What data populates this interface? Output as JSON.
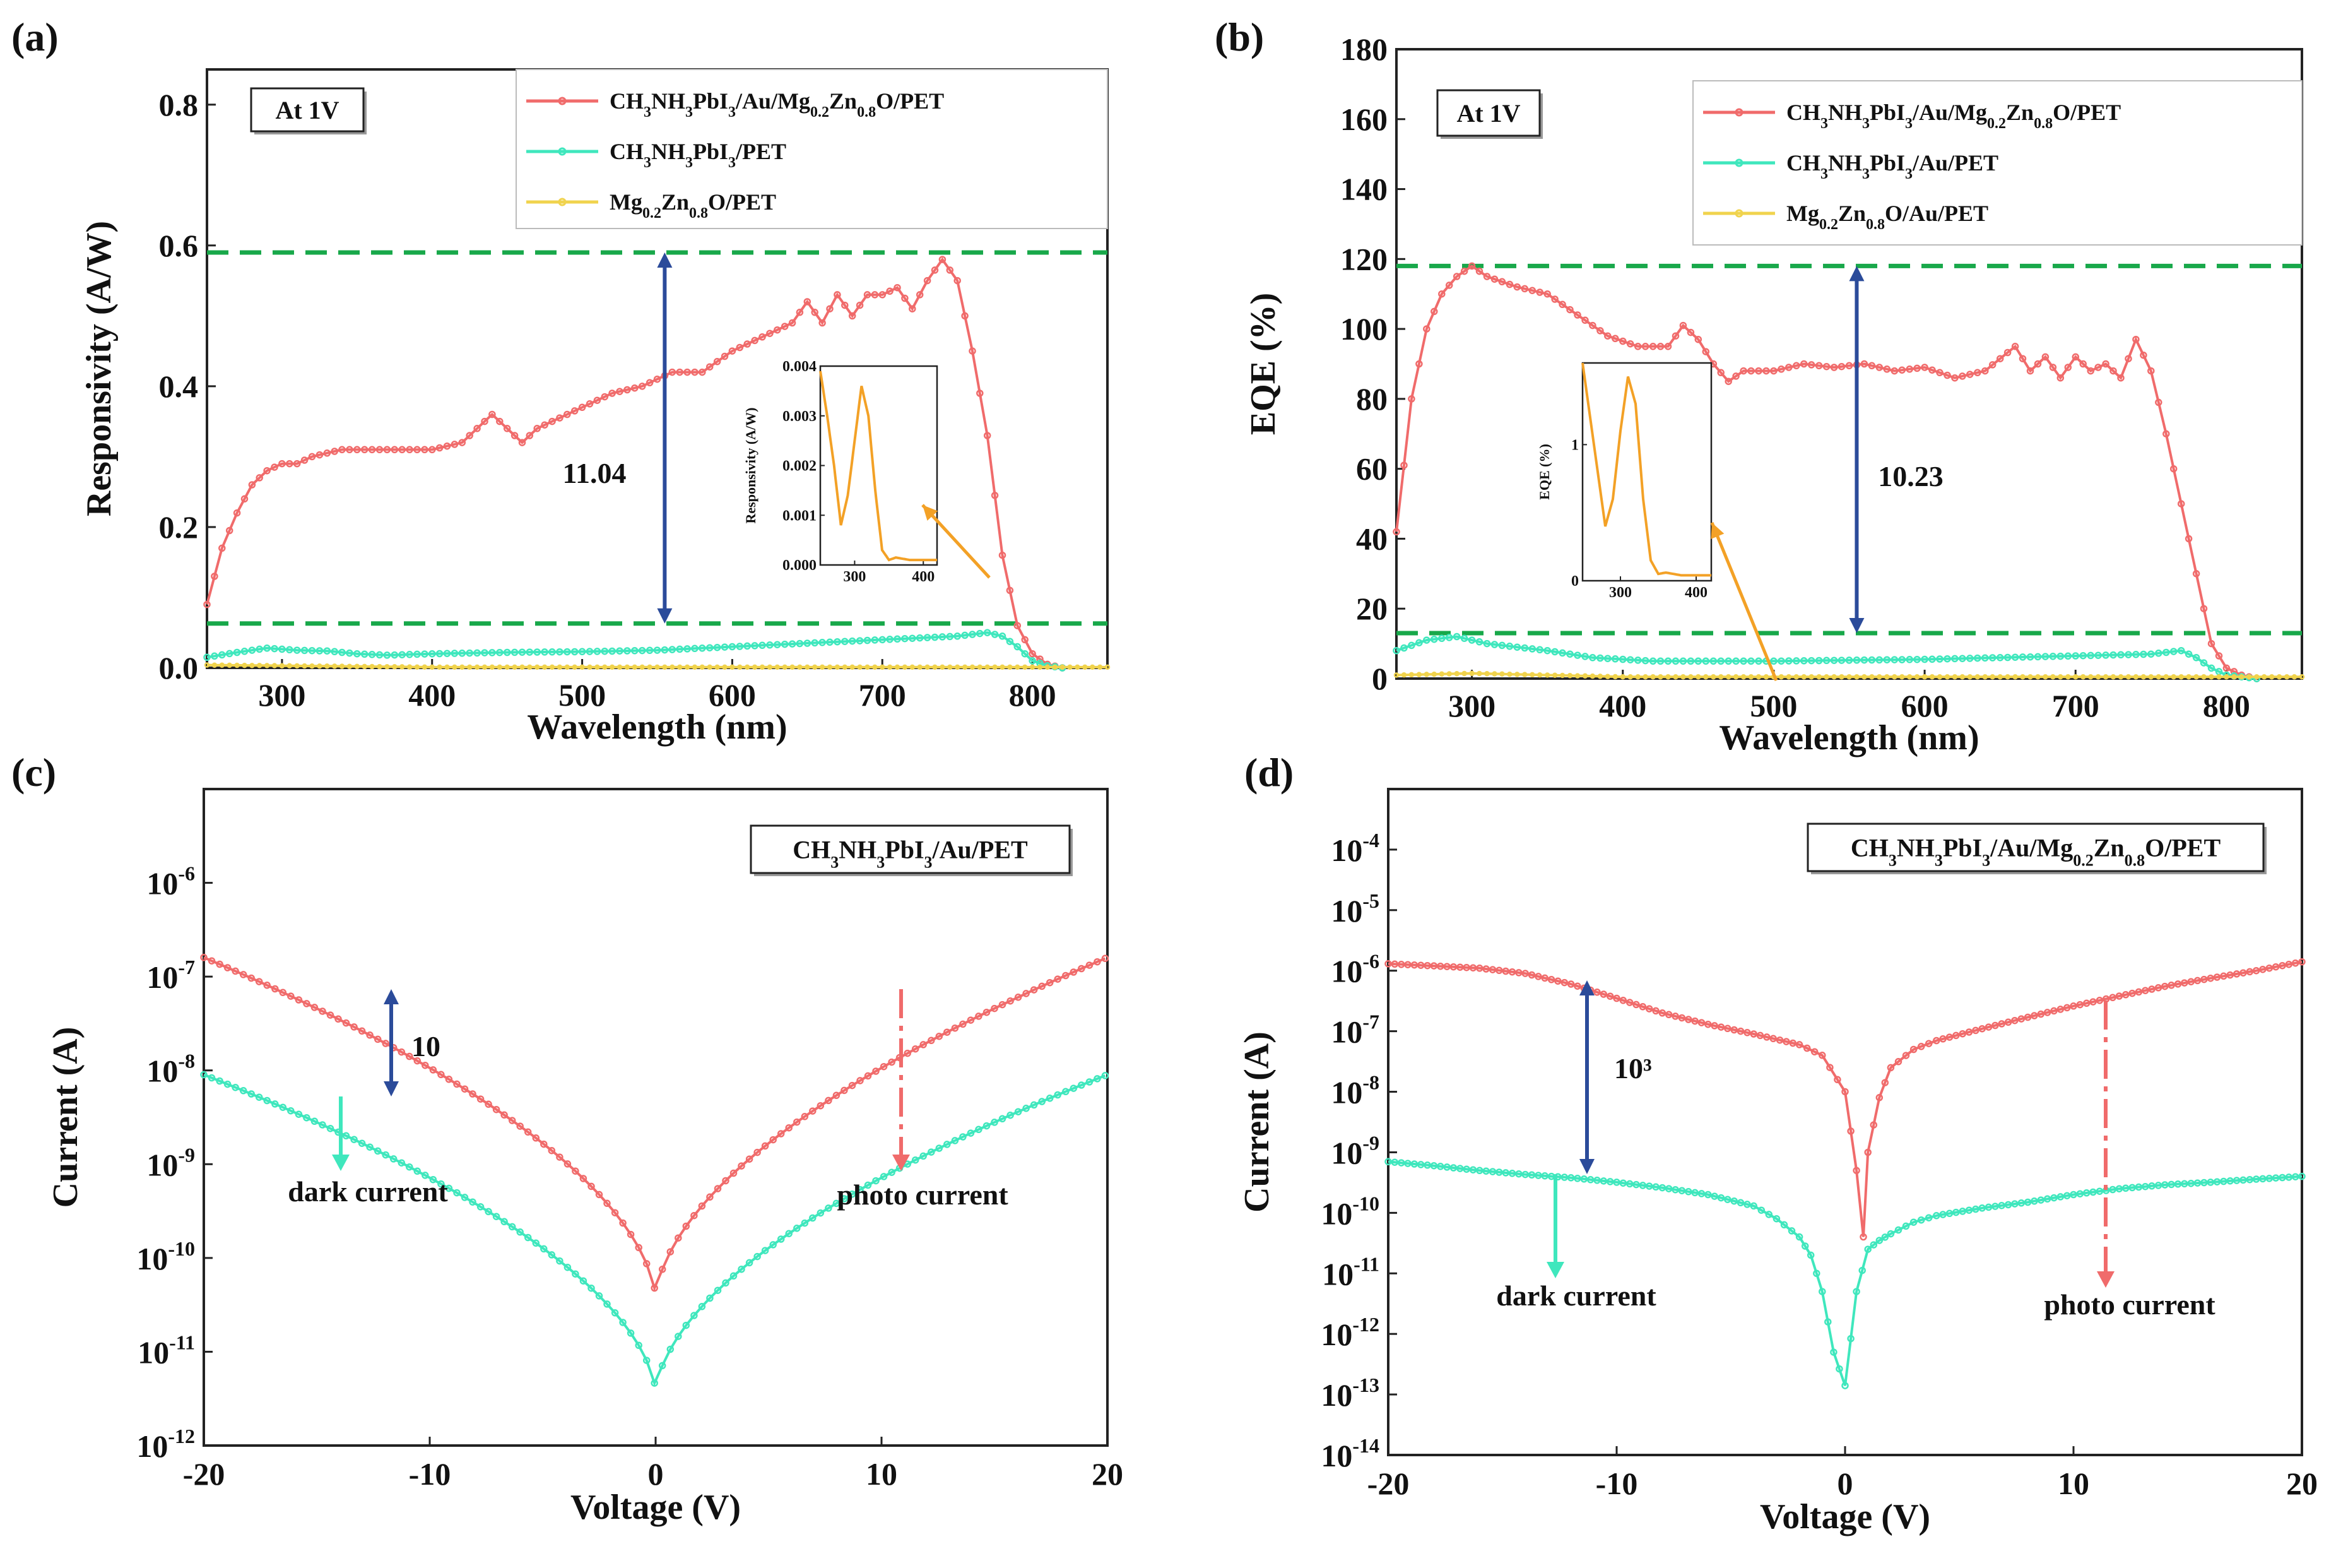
{
  "colors": {
    "red": "#f06b6b",
    "cyan": "#3fe7bd",
    "yellow": "#f0d34d",
    "green": "#18a84a",
    "navy": "#2b4b9a",
    "orange": "#f3a126"
  },
  "panels": {
    "a": {
      "letter": "(a)",
      "xlabel": "Wavelength (nm)",
      "ylabel": "Responsivity (A/W)",
      "note": "At 1V",
      "ratio": "11.04",
      "legend": [
        {
          "html": "CH<tspan baseline-shift='sub' font-size='24'>3</tspan>NH<tspan baseline-shift='sub' font-size='24'>3</tspan>PbI<tspan baseline-shift='sub' font-size='24'>3</tspan>/Au/Mg<tspan baseline-shift='sub' font-size='24'>0.2</tspan>Zn<tspan baseline-shift='sub' font-size='24'>0.8</tspan>O/PET",
          "color": "red"
        },
        {
          "html": "CH<tspan baseline-shift='sub' font-size='24'>3</tspan>NH<tspan baseline-shift='sub' font-size='24'>3</tspan>PbI<tspan baseline-shift='sub' font-size='24'>3</tspan>/PET",
          "color": "cyan"
        },
        {
          "html": "Mg<tspan baseline-shift='sub' font-size='24'>0.2</tspan>Zn<tspan baseline-shift='sub' font-size='24'>0.8</tspan>O/PET",
          "color": "yellow"
        }
      ],
      "inset": {
        "ylabel": "Responsivity (A/W)",
        "yticks": [
          "0.000",
          "0.001",
          "0.002",
          "0.003",
          "0.004"
        ],
        "xticks": [
          "300",
          "400"
        ]
      }
    },
    "b": {
      "letter": "(b)",
      "xlabel": "Wavelength (nm)",
      "ylabel": "EQE (%)",
      "note": "At 1V",
      "ratio": "10.23",
      "legend": [
        {
          "html": "CH<tspan baseline-shift='sub' font-size='24'>3</tspan>NH<tspan baseline-shift='sub' font-size='24'>3</tspan>PbI<tspan baseline-shift='sub' font-size='24'>3</tspan>/Au/Mg<tspan baseline-shift='sub' font-size='24'>0.2</tspan>Zn<tspan baseline-shift='sub' font-size='24'>0.8</tspan>O/PET",
          "color": "red"
        },
        {
          "html": "CH<tspan baseline-shift='sub' font-size='24'>3</tspan>NH<tspan baseline-shift='sub' font-size='24'>3</tspan>PbI<tspan baseline-shift='sub' font-size='24'>3</tspan>/Au/PET",
          "color": "cyan"
        },
        {
          "html": "Mg<tspan baseline-shift='sub' font-size='24'>0.2</tspan>Zn<tspan baseline-shift='sub' font-size='24'>0.8</tspan>O/Au/PET",
          "color": "yellow"
        }
      ],
      "inset": {
        "ylabel": "EQE (%)",
        "yticks": [
          "0",
          "1"
        ],
        "xticks": [
          "300",
          "400"
        ]
      }
    },
    "c": {
      "letter": "(c)",
      "xlabel": "Voltage (V)",
      "ylabel": "Current (A)",
      "box": "CH<tspan baseline-shift='sub' font-size='26'>3</tspan>NH<tspan baseline-shift='sub' font-size='26'>3</tspan>PbI<tspan baseline-shift='sub' font-size='26'>3</tspan>/Au/PET",
      "ratio": "10",
      "dark": "dark current",
      "photo": "photo current"
    },
    "d": {
      "letter": "(d)",
      "xlabel": "Voltage (V)",
      "ylabel": "Current (A)",
      "box": "CH<tspan baseline-shift='sub' font-size='26'>3</tspan>NH<tspan baseline-shift='sub' font-size='26'>3</tspan>PbI<tspan baseline-shift='sub' font-size='26'>3</tspan>/Au/Mg<tspan baseline-shift='sub' font-size='26'>0.2</tspan>Zn<tspan baseline-shift='sub' font-size='26'>0.8</tspan>O/PET",
      "ratio": "10³",
      "dark": "dark current",
      "photo": "photo current"
    }
  },
  "chart_data": [
    {
      "id": "a",
      "type": "line",
      "title": "(a)",
      "xlabel": "Wavelength (nm)",
      "ylabel": "Responsivity (A/W)",
      "xlim": [
        250,
        850
      ],
      "ylim": [
        0,
        0.85
      ],
      "xticks": [
        300,
        400,
        500,
        600,
        700,
        800
      ],
      "yticks": [
        0.0,
        0.2,
        0.4,
        0.6,
        0.8
      ],
      "ytick_labels": [
        "0.0",
        "0.2",
        "0.4",
        "0.6",
        "0.8"
      ],
      "annotations": [
        "At 1V",
        "11.04"
      ],
      "reference_lines": [
        0.59,
        0.063
      ],
      "series": [
        {
          "name": "CH3NH3PbI3/Au/Mg0.2Zn0.8O/PET",
          "color": "red",
          "x": [
            250,
            260,
            270,
            280,
            290,
            300,
            310,
            320,
            340,
            360,
            380,
            400,
            420,
            440,
            450,
            460,
            470,
            480,
            500,
            520,
            540,
            560,
            580,
            600,
            620,
            640,
            650,
            660,
            670,
            680,
            690,
            700,
            710,
            720,
            730,
            740,
            750,
            760,
            770,
            780,
            790,
            800,
            810,
            820
          ],
          "y": [
            0.09,
            0.17,
            0.22,
            0.26,
            0.28,
            0.29,
            0.29,
            0.3,
            0.31,
            0.31,
            0.31,
            0.31,
            0.32,
            0.36,
            0.34,
            0.32,
            0.34,
            0.35,
            0.37,
            0.39,
            0.4,
            0.42,
            0.42,
            0.45,
            0.47,
            0.49,
            0.52,
            0.49,
            0.53,
            0.5,
            0.53,
            0.53,
            0.54,
            0.51,
            0.55,
            0.58,
            0.55,
            0.45,
            0.33,
            0.16,
            0.06,
            0.02,
            0.005,
            0.0
          ]
        },
        {
          "name": "CH3NH3PbI3/PET",
          "color": "cyan",
          "x": [
            250,
            270,
            290,
            310,
            330,
            350,
            370,
            400,
            450,
            500,
            550,
            600,
            650,
            700,
            750,
            770,
            780,
            790,
            800,
            810,
            820
          ],
          "y": [
            0.015,
            0.022,
            0.028,
            0.025,
            0.024,
            0.02,
            0.018,
            0.02,
            0.022,
            0.023,
            0.025,
            0.03,
            0.035,
            0.04,
            0.045,
            0.05,
            0.045,
            0.03,
            0.01,
            0.003,
            0.0
          ]
        },
        {
          "name": "Mg0.2Zn0.8O/PET",
          "color": "yellow",
          "x": [
            250,
            300,
            350,
            400,
            500,
            600,
            700,
            800,
            850
          ],
          "y": [
            0.004,
            0.003,
            0.002,
            0.001,
            0.001,
            0.001,
            0.001,
            0.001,
            0.001
          ]
        }
      ],
      "inset": {
        "ylabel": "Responsivity (A/W)",
        "xlim": [
          250,
          420
        ],
        "ylim": [
          0,
          0.004
        ],
        "xticks": [
          300,
          400
        ],
        "yticks": [
          0,
          0.001,
          0.002,
          0.003,
          0.004
        ],
        "x": [
          250,
          260,
          270,
          280,
          290,
          300,
          310,
          320,
          330,
          340,
          350,
          360,
          380,
          400,
          420
        ],
        "y": [
          0.0039,
          0.003,
          0.002,
          0.0008,
          0.0014,
          0.0025,
          0.0036,
          0.003,
          0.0015,
          0.0003,
          0.0001,
          0.00015,
          0.0001,
          0.0001,
          0.0001
        ]
      }
    },
    {
      "id": "b",
      "type": "line",
      "title": "(b)",
      "xlabel": "Wavelength (nm)",
      "ylabel": "EQE (%)",
      "xlim": [
        250,
        850
      ],
      "ylim": [
        0,
        180
      ],
      "xticks": [
        300,
        400,
        500,
        600,
        700,
        800
      ],
      "yticks": [
        0,
        20,
        40,
        60,
        80,
        100,
        120,
        140,
        160,
        180
      ],
      "ytick_labels": [
        "0",
        "20",
        "40",
        "60",
        "80",
        "100",
        "120",
        "140",
        "160",
        "180"
      ],
      "annotations": [
        "At 1V",
        "10.23"
      ],
      "reference_lines": [
        118,
        13
      ],
      "series": [
        {
          "name": "CH3NH3PbI3/Au/Mg0.2Zn0.8O/PET",
          "color": "red",
          "x": [
            250,
            260,
            270,
            280,
            290,
            300,
            310,
            330,
            350,
            370,
            390,
            410,
            430,
            440,
            450,
            460,
            470,
            480,
            500,
            520,
            540,
            560,
            580,
            600,
            620,
            640,
            660,
            670,
            680,
            690,
            700,
            710,
            720,
            730,
            740,
            750,
            760,
            770,
            780,
            790,
            800,
            810,
            820
          ],
          "y": [
            42,
            80,
            100,
            110,
            115,
            118,
            115,
            112,
            110,
            104,
            98,
            95,
            95,
            101,
            97,
            90,
            85,
            88,
            88,
            90,
            89,
            90,
            88,
            89,
            86,
            88,
            95,
            88,
            92,
            86,
            92,
            88,
            90,
            86,
            97,
            88,
            70,
            50,
            30,
            10,
            3,
            1,
            0
          ]
        },
        {
          "name": "CH3NH3PbI3/Au/PET",
          "color": "cyan",
          "x": [
            250,
            270,
            290,
            310,
            330,
            350,
            380,
            420,
            500,
            600,
            700,
            750,
            770,
            780,
            790,
            800,
            810,
            820
          ],
          "y": [
            8,
            11,
            12,
            10,
            9,
            8,
            6,
            5,
            5,
            5.5,
            6.5,
            7,
            8,
            6,
            3,
            1,
            0.5,
            0
          ]
        },
        {
          "name": "Mg0.2Zn0.8O/Au/PET",
          "color": "yellow",
          "x": [
            250,
            300,
            350,
            400,
            500,
            600,
            700,
            800,
            850
          ],
          "y": [
            1,
            1.5,
            1,
            0.5,
            0.5,
            0.5,
            0.5,
            0.5,
            0.5
          ]
        }
      ],
      "inset": {
        "ylabel": "EQE (%)",
        "xlim": [
          250,
          420
        ],
        "ylim": [
          0,
          1.6
        ],
        "xticks": [
          300,
          400
        ],
        "yticks": [
          0,
          1
        ],
        "x": [
          250,
          260,
          270,
          280,
          290,
          300,
          310,
          320,
          330,
          340,
          350,
          360,
          380,
          400,
          420
        ],
        "y": [
          1.6,
          1.2,
          0.8,
          0.4,
          0.6,
          1.1,
          1.5,
          1.3,
          0.6,
          0.15,
          0.05,
          0.06,
          0.04,
          0.04,
          0.04
        ]
      }
    },
    {
      "id": "c",
      "type": "line",
      "title": "(c)",
      "xlabel": "Voltage (V)",
      "ylabel": "Current (A)",
      "yscale": "log",
      "xlim": [
        -20,
        20
      ],
      "ylim_exp": [
        -12,
        -5
      ],
      "xticks": [
        -20,
        -10,
        0,
        10,
        20
      ],
      "yticks_exp": [
        -12,
        -11,
        -10,
        -9,
        -8,
        -7,
        -6
      ],
      "annotations": [
        "10",
        "dark current",
        "photo current",
        "CH3NH3PbI3/Au/PET"
      ],
      "series": [
        {
          "name": "photo current",
          "color": "red",
          "ref": -20,
          "far": 1.6e-07,
          "min": 3e-11,
          "k": 0.55
        },
        {
          "name": "dark current",
          "color": "cyan",
          "ref": -20,
          "far": 9e-09,
          "min": 3e-12,
          "k": 0.55
        }
      ]
    },
    {
      "id": "d",
      "type": "line",
      "title": "(d)",
      "xlabel": "Voltage (V)",
      "ylabel": "Current (A)",
      "yscale": "log",
      "xlim": [
        -20,
        20
      ],
      "ylim_exp": [
        -14,
        -3
      ],
      "xticks": [
        -20,
        -10,
        0,
        10,
        20
      ],
      "yticks_exp": [
        -14,
        -13,
        -12,
        -11,
        -10,
        -9,
        -8,
        -7,
        -6,
        -5,
        -4
      ],
      "annotations": [
        "10³",
        "dark current",
        "photo current",
        "CH3NH3PbI3/Au/Mg0.2Zn0.8O/PET"
      ],
      "series": [
        {
          "name": "photo current",
          "color": "red",
          "x": [
            -20,
            -18,
            -16,
            -14,
            -12,
            -10,
            -8,
            -6,
            -4,
            -2,
            -1,
            0,
            0.5,
            0.8,
            1,
            1.5,
            2,
            3,
            4,
            6,
            8,
            10,
            12,
            14,
            16,
            18,
            20
          ],
          "y": [
            1.3e-06,
            1.2e-06,
            1.1e-06,
            9e-07,
            6e-07,
            3.5e-07,
            2e-07,
            1.3e-07,
            9e-08,
            6e-08,
            4e-08,
            1e-08,
            5e-10,
            4e-11,
            1e-09,
            8e-09,
            2.5e-08,
            5e-08,
            7e-08,
            1.1e-07,
            1.7e-07,
            2.6e-07,
            3.8e-07,
            5.5e-07,
            7.5e-07,
            1e-06,
            1.4e-06
          ]
        },
        {
          "name": "dark current",
          "color": "cyan",
          "x": [
            -20,
            -18,
            -16,
            -14,
            -12,
            -10,
            -8,
            -6,
            -4,
            -3,
            -2,
            -1.5,
            -1,
            -0.5,
            0,
            0.5,
            1,
            1.5,
            2,
            3,
            4,
            6,
            8,
            10,
            12,
            14,
            16,
            18,
            20
          ],
          "y": [
            7e-10,
            6e-10,
            5e-10,
            4.3e-10,
            3.8e-10,
            3.2e-10,
            2.6e-10,
            2e-10,
            1.3e-10,
            8e-11,
            4e-11,
            2e-11,
            5e-12,
            5e-13,
            1.4e-13,
            5e-12,
            2.5e-11,
            3.5e-11,
            4.5e-11,
            7e-11,
            9e-11,
            1.2e-10,
            1.5e-10,
            2e-10,
            2.5e-10,
            2.9e-10,
            3.2e-10,
            3.6e-10,
            4e-10
          ]
        }
      ]
    }
  ]
}
